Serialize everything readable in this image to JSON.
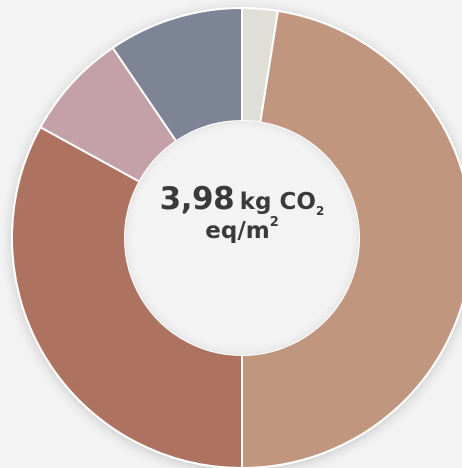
{
  "chart_data": {
    "type": "donut",
    "center_label": {
      "value": "3,98",
      "unit_prefix": "kg CO",
      "unit_subscript": "2",
      "unit_line2_base": "eq/m",
      "unit_line2_sup": "2"
    },
    "slices": [
      {
        "share": 0.025,
        "color": "#dfdfd8"
      },
      {
        "share": 0.475,
        "color": "#c0967f"
      },
      {
        "share": 0.33,
        "color": "#ad7260"
      },
      {
        "share": 0.075,
        "color": "#c4a1a8"
      },
      {
        "share": 0.095,
        "color": "#7c8496"
      }
    ],
    "start_angle_deg": 0,
    "background_color": "#f4f3f3",
    "hole_color": "#f4f3f3",
    "separator_color": "#ffffff"
  }
}
